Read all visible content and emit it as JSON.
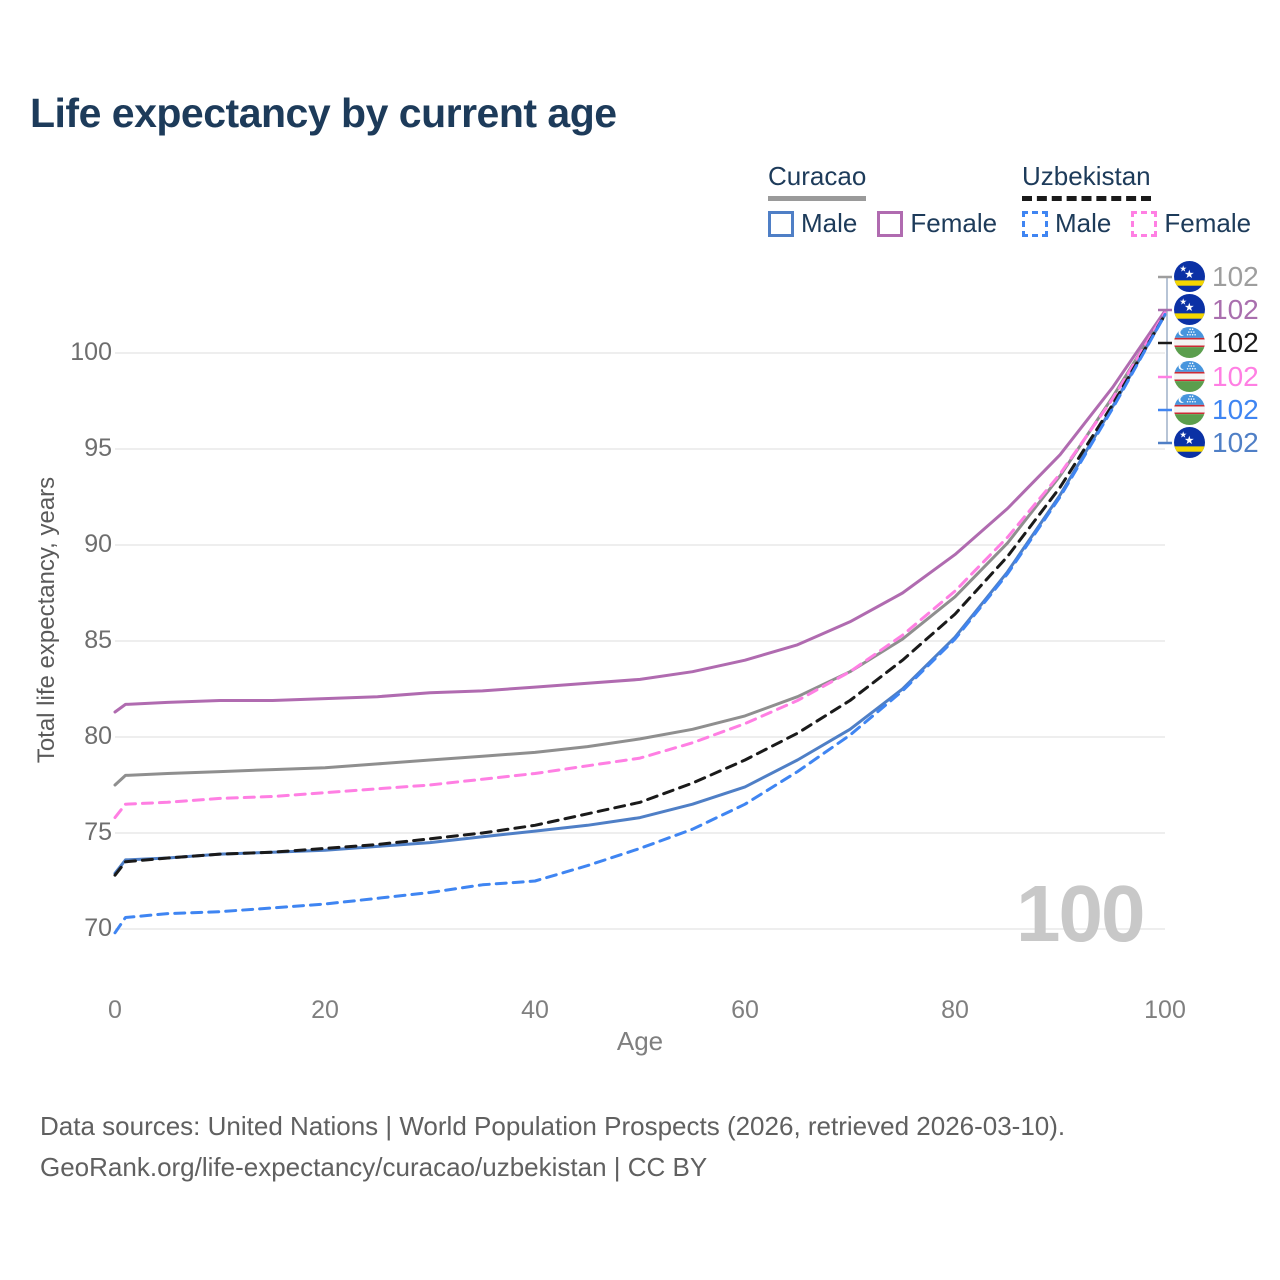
{
  "title": "Life expectancy by current age",
  "legend": {
    "groups": [
      {
        "name": "Curacao",
        "line_style": "solid",
        "line_color": "#9a9a9a",
        "items": [
          {
            "label": "Male",
            "color": "#4f7fc6",
            "style": "solid"
          },
          {
            "label": "Female",
            "color": "#b06bb0",
            "style": "solid"
          }
        ]
      },
      {
        "name": "Uzbekistan",
        "line_style": "dashed",
        "line_color": "#1a1a1a",
        "items": [
          {
            "label": "Male",
            "color": "#3f85f2",
            "style": "dashed"
          },
          {
            "label": "Female",
            "color": "#ff7fe3",
            "style": "dashed"
          }
        ]
      }
    ]
  },
  "axes": {
    "y_label": "Total life expectancy, years",
    "x_label": "Age",
    "y_ticks": [
      100,
      95,
      90,
      85,
      80,
      75,
      70
    ],
    "x_ticks": [
      0,
      20,
      40,
      60,
      80,
      100
    ]
  },
  "chart_data": {
    "type": "line",
    "title": "Life expectancy by current age",
    "xlabel": "Age",
    "ylabel": "Total life expectancy, years",
    "xlim": [
      0,
      100
    ],
    "ylim": [
      68,
      103
    ],
    "grid": "horizontal-only",
    "legend_position": "top-right",
    "x": [
      0,
      1,
      5,
      10,
      15,
      20,
      25,
      30,
      35,
      40,
      45,
      50,
      55,
      60,
      65,
      70,
      75,
      80,
      85,
      90,
      95,
      100
    ],
    "series": [
      {
        "name": "Curacao - All",
        "country": "Curacao",
        "sex": "all",
        "style": "solid",
        "color": "#8f8f8f",
        "values": [
          77.5,
          78.0,
          78.1,
          78.2,
          78.3,
          78.4,
          78.6,
          78.8,
          79.0,
          79.2,
          79.5,
          79.9,
          80.4,
          81.1,
          82.1,
          83.4,
          85.1,
          87.3,
          90.1,
          93.6,
          97.7,
          102.1
        ]
      },
      {
        "name": "Curacao - Female",
        "country": "Curacao",
        "sex": "female",
        "style": "solid",
        "color": "#b06bb0",
        "values": [
          81.3,
          81.7,
          81.8,
          81.9,
          81.9,
          82.0,
          82.1,
          82.3,
          82.4,
          82.6,
          82.8,
          83.0,
          83.4,
          84.0,
          84.8,
          86.0,
          87.5,
          89.5,
          91.9,
          94.7,
          98.2,
          102.2
        ]
      },
      {
        "name": "Curacao - Male",
        "country": "Curacao",
        "sex": "male",
        "style": "solid",
        "color": "#4f7fc6",
        "values": [
          72.9,
          73.6,
          73.7,
          73.9,
          74.0,
          74.1,
          74.3,
          74.5,
          74.8,
          75.1,
          75.4,
          75.8,
          76.5,
          77.4,
          78.8,
          80.4,
          82.5,
          85.2,
          88.6,
          92.6,
          97.2,
          102.0
        ]
      },
      {
        "name": "Uzbekistan - All",
        "country": "Uzbekistan",
        "sex": "all",
        "style": "dashed",
        "color": "#1a1a1a",
        "values": [
          72.8,
          73.5,
          73.7,
          73.9,
          74.0,
          74.2,
          74.4,
          74.7,
          75.0,
          75.4,
          76.0,
          76.6,
          77.6,
          78.8,
          80.2,
          81.9,
          84.0,
          86.4,
          89.4,
          93.0,
          97.3,
          102.0
        ]
      },
      {
        "name": "Uzbekistan - Female",
        "country": "Uzbekistan",
        "sex": "female",
        "style": "dashed",
        "color": "#ff7fe3",
        "values": [
          75.8,
          76.5,
          76.6,
          76.8,
          76.9,
          77.1,
          77.3,
          77.5,
          77.8,
          78.1,
          78.5,
          78.9,
          79.7,
          80.7,
          81.9,
          83.4,
          85.3,
          87.6,
          90.4,
          93.7,
          97.6,
          102.1
        ]
      },
      {
        "name": "Uzbekistan - Male",
        "country": "Uzbekistan",
        "sex": "male",
        "style": "dashed",
        "color": "#3f85f2",
        "values": [
          69.8,
          70.6,
          70.8,
          70.9,
          71.1,
          71.3,
          71.6,
          71.9,
          72.3,
          72.5,
          73.3,
          74.2,
          75.2,
          76.5,
          78.2,
          80.1,
          82.4,
          85.1,
          88.5,
          92.5,
          97.1,
          102.0
        ]
      }
    ]
  },
  "end_labels": [
    {
      "country": "Curacao",
      "value": "102",
      "color": "#9e9e9e"
    },
    {
      "country": "Curacao",
      "value": "102",
      "color": "#a96fae"
    },
    {
      "country": "Uzbekistan",
      "value": "102",
      "color": "#1a1a1a"
    },
    {
      "country": "Uzbekistan",
      "value": "102",
      "color": "#ff7fe3"
    },
    {
      "country": "Uzbekistan",
      "value": "102",
      "color": "#3f85f2"
    },
    {
      "country": "Curacao",
      "value": "102",
      "color": "#4f7fc6"
    }
  ],
  "watermark": "100",
  "footer": {
    "line1": "Data sources: United Nations | World Population Prospects (2026, retrieved 2026-03-10).",
    "line2": "GeoRank.org/life-expectancy/curacao/uzbekistan | CC BY"
  }
}
